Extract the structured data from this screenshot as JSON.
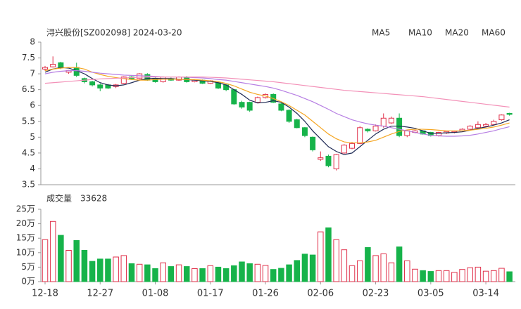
{
  "chart_data": [
    {
      "type": "candlestick",
      "title": "浔兴股份[SZ002098] 2024-03-20",
      "categories": [
        "12-18",
        null,
        null,
        null,
        null,
        null,
        null,
        "12-27",
        null,
        null,
        null,
        null,
        null,
        null,
        "01-08",
        null,
        null,
        null,
        null,
        null,
        null,
        "01-17",
        null,
        null,
        null,
        null,
        null,
        null,
        "01-26",
        null,
        null,
        null,
        null,
        null,
        null,
        "02-06",
        null,
        null,
        null,
        null,
        null,
        null,
        "02-23",
        null,
        null,
        null,
        null,
        null,
        null,
        "03-05",
        null,
        null,
        null,
        null,
        null,
        null,
        "03-14",
        null,
        null,
        null
      ],
      "open": [
        7.15,
        7.22,
        7.35,
        7.05,
        7.2,
        6.85,
        6.75,
        6.65,
        6.65,
        6.6,
        6.7,
        6.9,
        6.85,
        6.98,
        6.85,
        6.75,
        6.85,
        6.8,
        6.9,
        6.75,
        6.8,
        6.7,
        6.72,
        6.65,
        6.5,
        6.1,
        6.1,
        6.1,
        6.25,
        6.35,
        6.05,
        5.85,
        5.55,
        5.3,
        5.0,
        4.3,
        4.4,
        4.0,
        4.5,
        4.65,
        4.8,
        5.25,
        5.2,
        5.35,
        5.45,
        5.6,
        5.05,
        5.15,
        5.2,
        5.15,
        5.05,
        5.13,
        5.15,
        5.2,
        5.25,
        5.3,
        5.35,
        5.4,
        5.55,
        5.75
      ],
      "high": [
        7.25,
        7.55,
        7.38,
        7.12,
        7.35,
        6.88,
        6.78,
        6.7,
        6.68,
        6.68,
        6.92,
        6.93,
        7.02,
        7.02,
        6.88,
        6.92,
        6.88,
        6.92,
        6.93,
        6.82,
        6.82,
        6.8,
        6.75,
        6.67,
        6.52,
        6.15,
        6.12,
        6.28,
        6.38,
        6.38,
        6.08,
        5.88,
        5.58,
        5.32,
        5.02,
        4.55,
        4.45,
        4.47,
        4.78,
        4.85,
        5.35,
        5.28,
        5.4,
        5.75,
        5.65,
        5.75,
        5.22,
        5.23,
        5.22,
        5.17,
        5.17,
        5.2,
        5.2,
        5.28,
        5.38,
        5.5,
        5.45,
        5.55,
        5.72,
        5.77
      ],
      "low": [
        7.1,
        7.2,
        7.15,
        7.0,
        6.9,
        6.7,
        6.6,
        6.45,
        6.52,
        6.55,
        6.68,
        6.82,
        6.82,
        6.78,
        6.72,
        6.72,
        6.78,
        6.78,
        6.72,
        6.73,
        6.68,
        6.68,
        6.52,
        6.45,
        6.02,
        5.9,
        5.8,
        6.08,
        6.22,
        6.08,
        5.82,
        5.45,
        5.28,
        5.0,
        4.55,
        4.25,
        4.05,
        3.95,
        4.48,
        4.62,
        4.78,
        5.15,
        5.18,
        5.3,
        5.42,
        5.0,
        5.0,
        5.12,
        5.08,
        5.02,
        5.02,
        5.1,
        5.12,
        5.18,
        5.22,
        5.28,
        5.32,
        5.38,
        5.52,
        5.68
      ],
      "close": [
        7.2,
        7.3,
        7.2,
        7.1,
        6.95,
        6.75,
        6.65,
        6.55,
        6.55,
        6.65,
        6.9,
        6.85,
        7.0,
        6.8,
        6.75,
        6.9,
        6.8,
        6.9,
        6.75,
        6.8,
        6.7,
        6.78,
        6.55,
        6.5,
        6.05,
        5.95,
        5.85,
        6.25,
        6.35,
        6.1,
        5.85,
        5.5,
        5.3,
        5.05,
        4.6,
        4.35,
        4.1,
        4.45,
        4.75,
        4.8,
        5.3,
        5.2,
        5.35,
        5.6,
        5.6,
        5.05,
        5.2,
        5.2,
        5.1,
        5.05,
        5.15,
        5.18,
        5.18,
        5.25,
        5.35,
        5.4,
        5.4,
        5.5,
        5.7,
        5.72
      ],
      "up_color": "#e0304a",
      "down_color": "#16b34a",
      "series": [
        {
          "name": "MA5",
          "color": "#1f2a55",
          "values": [
            7.05,
            7.15,
            7.2,
            7.18,
            7.1,
            7.0,
            6.85,
            6.72,
            6.65,
            6.62,
            6.65,
            6.72,
            6.8,
            6.85,
            6.86,
            6.85,
            6.85,
            6.83,
            6.82,
            6.8,
            6.78,
            6.76,
            6.72,
            6.65,
            6.5,
            6.35,
            6.17,
            6.08,
            6.1,
            6.15,
            6.1,
            5.95,
            5.75,
            5.5,
            5.2,
            4.95,
            4.7,
            4.55,
            4.45,
            4.5,
            4.7,
            4.9,
            5.1,
            5.25,
            5.35,
            5.35,
            5.32,
            5.28,
            5.2,
            5.12,
            5.12,
            5.14,
            5.15,
            5.17,
            5.22,
            5.28,
            5.32,
            5.38,
            5.45,
            5.55
          ]
        },
        {
          "name": "MA10",
          "color": "#f5a623",
          "values": [
            7.1,
            7.15,
            7.18,
            7.2,
            7.2,
            7.15,
            7.05,
            6.98,
            6.92,
            6.88,
            6.85,
            6.82,
            6.8,
            6.8,
            6.82,
            6.83,
            6.83,
            6.83,
            6.82,
            6.82,
            6.8,
            6.78,
            6.75,
            6.7,
            6.62,
            6.52,
            6.42,
            6.35,
            6.3,
            6.22,
            6.12,
            6.0,
            5.85,
            5.7,
            5.5,
            5.3,
            5.1,
            4.95,
            4.85,
            4.82,
            4.82,
            4.85,
            4.9,
            5.0,
            5.1,
            5.18,
            5.23,
            5.25,
            5.25,
            5.24,
            5.22,
            5.2,
            5.2,
            5.2,
            5.22,
            5.25,
            5.28,
            5.32,
            5.38,
            5.45
          ]
        },
        {
          "name": "MA20",
          "color": "#b67ee3",
          "values": [
            7.0,
            7.05,
            7.08,
            7.1,
            7.1,
            7.08,
            7.05,
            7.02,
            7.0,
            6.98,
            6.96,
            6.95,
            6.94,
            6.93,
            6.92,
            6.9,
            6.9,
            6.9,
            6.89,
            6.88,
            6.87,
            6.85,
            6.82,
            6.8,
            6.76,
            6.72,
            6.68,
            6.64,
            6.6,
            6.55,
            6.48,
            6.4,
            6.32,
            6.22,
            6.12,
            6.0,
            5.88,
            5.75,
            5.65,
            5.55,
            5.48,
            5.42,
            5.38,
            5.35,
            5.3,
            5.25,
            5.2,
            5.15,
            5.1,
            5.06,
            5.04,
            5.03,
            5.03,
            5.04,
            5.06,
            5.1,
            5.15,
            5.2,
            5.27,
            5.33
          ]
        },
        {
          "name": "MA60",
          "color": "#f391b8",
          "values": [
            6.7,
            6.72,
            6.74,
            6.76,
            6.78,
            6.8,
            6.82,
            6.84,
            6.85,
            6.86,
            6.87,
            6.88,
            6.89,
            6.9,
            6.9,
            6.9,
            6.9,
            6.9,
            6.9,
            6.9,
            6.9,
            6.89,
            6.88,
            6.87,
            6.85,
            6.83,
            6.81,
            6.79,
            6.77,
            6.75,
            6.72,
            6.69,
            6.66,
            6.63,
            6.6,
            6.57,
            6.54,
            6.51,
            6.48,
            6.46,
            6.44,
            6.42,
            6.4,
            6.38,
            6.36,
            6.34,
            6.32,
            6.3,
            6.28,
            6.25,
            6.22,
            6.19,
            6.16,
            6.13,
            6.1,
            6.07,
            6.04,
            6.01,
            5.98,
            5.95
          ]
        }
      ],
      "ylim": [
        3.5,
        8
      ],
      "yticks": [
        3.5,
        4,
        4.5,
        5,
        5.5,
        6,
        6.5,
        7,
        7.5,
        8
      ]
    },
    {
      "type": "bar",
      "title": "成交量",
      "latest_volume": 33628,
      "values": [
        14.5,
        20.8,
        16,
        10.8,
        14.2,
        10.8,
        7,
        7.8,
        7.8,
        8.5,
        9,
        6.2,
        6,
        5.8,
        4.5,
        6.5,
        5.2,
        5.8,
        5.2,
        4.5,
        4.5,
        5.5,
        5,
        4.5,
        5.5,
        6.8,
        6.2,
        6,
        5.6,
        4.2,
        4.6,
        5.8,
        7.3,
        9.5,
        9.2,
        17.2,
        18.6,
        14.5,
        11,
        5.5,
        7.2,
        11.8,
        9,
        9.6,
        6.5,
        12,
        7.2,
        4.3,
        3.8,
        3.5,
        3.8,
        3.8,
        3.2,
        4.2,
        4.8,
        5,
        3.6,
        3.8,
        4.6,
        3.4
      ],
      "ylim": [
        0,
        25
      ],
      "yticks": [
        {
          "value": 0,
          "label": "0万"
        },
        {
          "value": 5,
          "label": "5万"
        },
        {
          "value": 10,
          "label": "10万"
        },
        {
          "value": 15,
          "label": "15万"
        },
        {
          "value": 20,
          "label": "20万"
        },
        {
          "value": 25,
          "label": "25万"
        }
      ]
    }
  ]
}
